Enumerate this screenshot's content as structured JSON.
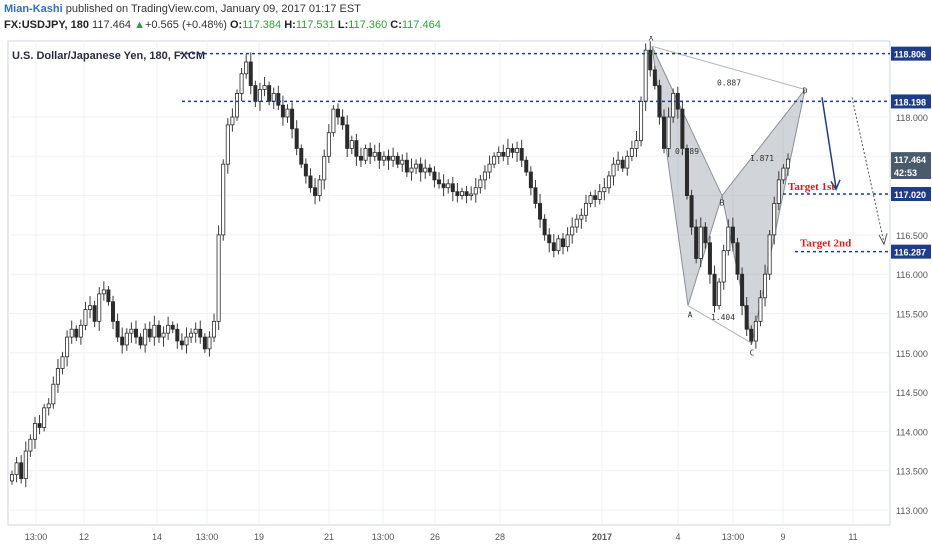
{
  "header": {
    "author": "Mian-Kashi",
    "published": " published on TradingView.com, January 09, 2017 01:17 EST",
    "symbol": "FX:USDJPY, 180",
    "last": "117.464",
    "change": "+0.565 (+0.48%)",
    "o_label": "O:",
    "o_value": "117.384",
    "h_label": "H:",
    "h_value": "117.531",
    "l_label": "L:",
    "l_value": "117.360",
    "c_label": "C:",
    "c_value": "117.464"
  },
  "chart_data": {
    "type": "candlestick",
    "title": "U.S. Dollar/Japanese Yen, 180, FXCM",
    "ylim": [
      112.85,
      118.95
    ],
    "y_ticks": [
      "118.000",
      "117.500",
      "117.000",
      "116.500",
      "116.000",
      "115.500",
      "115.000",
      "114.500",
      "114.000",
      "113.500",
      "113.000"
    ],
    "x_ticks": [
      "13:00",
      "12",
      "14",
      "13:00",
      "19",
      "21",
      "13:00",
      "26",
      "28",
      "2017",
      "4",
      "13:00",
      "9",
      "11"
    ],
    "price_labels": [
      {
        "text": "118.806",
        "value": 118.806,
        "color": "#1f3c88"
      },
      {
        "text": "118.198",
        "value": 118.198,
        "color": "#1f3c88"
      },
      {
        "text": "117.464",
        "value": 117.464,
        "color": "#ffffff"
      },
      {
        "text": "42:53",
        "value": 117.3,
        "color": "#ffffff"
      },
      {
        "text": "117.020",
        "value": 117.02,
        "color": "#1f3c88"
      },
      {
        "text": "116.287",
        "value": 116.287,
        "color": "#1f3c88"
      }
    ],
    "levels": [
      118.806,
      118.198,
      117.02,
      116.287
    ],
    "pattern_points": [
      {
        "label": "X",
        "value": 118.9
      },
      {
        "label": "A",
        "value": 115.6
      },
      {
        "label": "B",
        "value": 117.0
      },
      {
        "label": "C",
        "value": 115.12
      },
      {
        "label": "D",
        "value": 118.35
      }
    ],
    "ratios": [
      "0.887",
      "0.989",
      "1.404",
      "1.871"
    ],
    "targets": [
      "Target 1st",
      "Target 2nd"
    ],
    "candle_close_path": [
      113.45,
      113.6,
      113.4,
      113.75,
      113.9,
      114.1,
      114.05,
      114.3,
      114.35,
      114.6,
      114.8,
      114.95,
      115.2,
      115.3,
      115.2,
      115.35,
      115.55,
      115.6,
      115.4,
      115.75,
      115.8,
      115.65,
      115.4,
      115.2,
      115.1,
      115.25,
      115.3,
      115.2,
      115.1,
      115.3,
      115.2,
      115.35,
      115.2,
      115.25,
      115.35,
      115.3,
      115.15,
      115.1,
      115.2,
      115.25,
      115.3,
      115.2,
      115.05,
      115.2,
      115.4,
      116.5,
      117.4,
      117.9,
      118.0,
      118.3,
      118.55,
      118.7,
      118.4,
      118.2,
      118.35,
      118.4,
      118.2,
      118.3,
      118.15,
      118.0,
      118.1,
      117.85,
      117.6,
      117.4,
      117.25,
      117.1,
      117.0,
      117.2,
      117.5,
      117.8,
      118.1,
      118.0,
      117.9,
      117.6,
      117.7,
      117.5,
      117.45,
      117.6,
      117.5,
      117.55,
      117.45,
      117.5,
      117.45,
      117.5,
      117.4,
      117.45,
      117.3,
      117.35,
      117.4,
      117.3,
      117.35,
      117.3,
      117.2,
      117.15,
      117.1,
      117.15,
      117.05,
      117.0,
      117.05,
      117.0,
      117.02,
      117.1,
      117.2,
      117.3,
      117.4,
      117.5,
      117.55,
      117.5,
      117.6,
      117.55,
      117.6,
      117.45,
      117.3,
      117.1,
      116.9,
      116.7,
      116.5,
      116.4,
      116.3,
      116.45,
      116.35,
      116.5,
      116.6,
      116.7,
      116.75,
      116.9,
      117.0,
      116.95,
      117.05,
      117.1,
      117.25,
      117.4,
      117.45,
      117.35,
      117.5,
      117.6,
      117.7,
      118.2,
      118.85,
      118.6,
      118.4,
      118.0,
      117.6,
      118.0,
      118.3,
      118.1,
      117.6,
      117.0,
      116.6,
      116.2,
      116.6,
      116.4,
      116.0,
      115.6,
      115.9,
      116.3,
      116.6,
      116.4,
      116.0,
      115.6,
      115.3,
      115.15,
      115.4,
      115.7,
      116.0,
      116.5,
      116.9,
      117.2,
      117.35,
      117.464
    ]
  }
}
